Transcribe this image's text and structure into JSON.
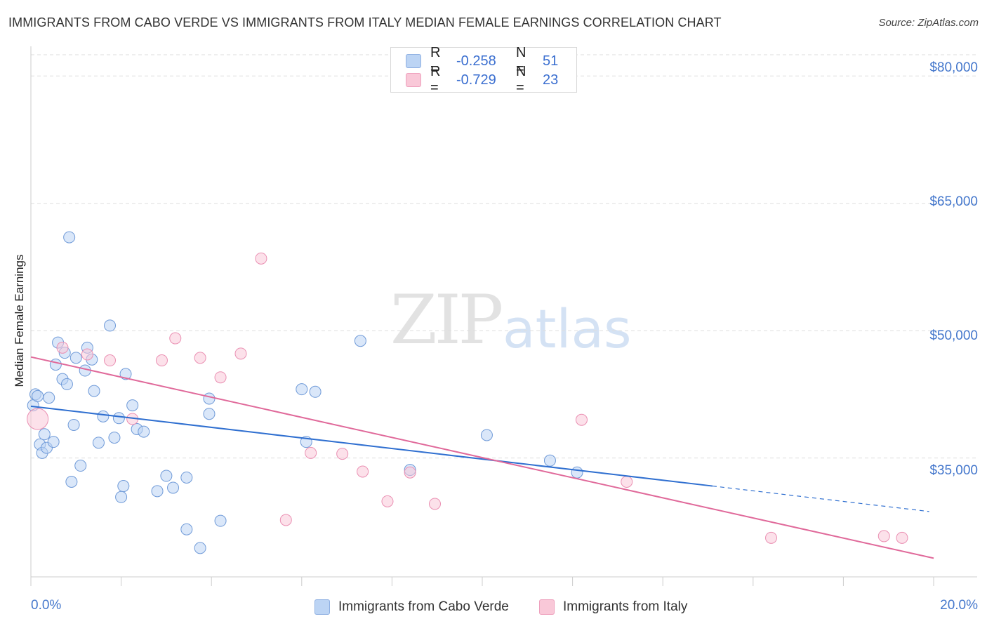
{
  "title": "IMMIGRANTS FROM CABO VERDE VS IMMIGRANTS FROM ITALY MEDIAN FEMALE EARNINGS CORRELATION CHART",
  "source": "Source: ZipAtlas.com",
  "watermark": {
    "zip": "ZIP",
    "atlas": "atlas"
  },
  "colors": {
    "blue": "#4b7fd6",
    "blue_fill": "#bcd4f4",
    "blue_line": "#2f6fd0",
    "pink": "#e46aa0",
    "pink_fill": "#f9c8d8",
    "pink_line": "#e0699a",
    "tick_text": "#4477cc",
    "grid": "#dddddd"
  },
  "legend_top": [
    {
      "r_label": "R =",
      "r_value": "-0.258",
      "n_label": "N =",
      "n_value": "51"
    },
    {
      "r_label": "R =",
      "r_value": "-0.729",
      "n_label": "N =",
      "n_value": "23"
    }
  ],
  "legend_bottom": [
    "Immigrants from Cabo Verde",
    "Immigrants from Italy"
  ],
  "chart_data": {
    "type": "scatter",
    "title": "IMMIGRANTS FROM CABO VERDE VS IMMIGRANTS FROM ITALY MEDIAN FEMALE EARNINGS CORRELATION CHART",
    "xlabel": "",
    "ylabel": "Median Female Earnings",
    "xlim": [
      0,
      20
    ],
    "ylim": [
      21000,
      82500
    ],
    "x_tick_labels": [
      "0.0%",
      "20.0%"
    ],
    "y_ticks": [
      35000,
      50000,
      65000,
      80000
    ],
    "y_tick_labels": [
      "$35,000",
      "$50,000",
      "$65,000",
      "$80,000"
    ],
    "grid": true,
    "series": [
      {
        "name": "Immigrants from Cabo Verde",
        "R": -0.258,
        "N": 51,
        "points": [
          [
            0.05,
            41.2
          ],
          [
            0.1,
            42.5
          ],
          [
            0.15,
            42.3
          ],
          [
            0.2,
            36.6
          ],
          [
            0.25,
            35.6
          ],
          [
            0.3,
            37.8
          ],
          [
            0.35,
            36.2
          ],
          [
            0.4,
            42.1
          ],
          [
            0.5,
            36.9
          ],
          [
            0.55,
            46.0
          ],
          [
            0.6,
            48.6
          ],
          [
            0.7,
            44.3
          ],
          [
            0.75,
            47.4
          ],
          [
            0.8,
            43.7
          ],
          [
            0.85,
            61.0
          ],
          [
            0.9,
            32.2
          ],
          [
            0.95,
            38.9
          ],
          [
            1.0,
            46.8
          ],
          [
            1.1,
            34.1
          ],
          [
            1.2,
            45.3
          ],
          [
            1.25,
            48.0
          ],
          [
            1.35,
            46.6
          ],
          [
            1.4,
            42.9
          ],
          [
            1.5,
            36.8
          ],
          [
            1.6,
            39.9
          ],
          [
            1.75,
            50.6
          ],
          [
            1.85,
            37.4
          ],
          [
            1.95,
            39.7
          ],
          [
            2.0,
            30.4
          ],
          [
            2.05,
            31.7
          ],
          [
            2.1,
            44.9
          ],
          [
            2.25,
            41.2
          ],
          [
            2.35,
            38.4
          ],
          [
            2.5,
            38.1
          ],
          [
            2.8,
            31.1
          ],
          [
            3.0,
            32.9
          ],
          [
            3.15,
            31.5
          ],
          [
            3.45,
            32.7
          ],
          [
            3.45,
            26.6
          ],
          [
            3.75,
            24.4
          ],
          [
            3.95,
            40.2
          ],
          [
            3.95,
            42.0
          ],
          [
            4.2,
            27.6
          ],
          [
            6.0,
            43.1
          ],
          [
            6.1,
            36.9
          ],
          [
            6.3,
            42.8
          ],
          [
            7.3,
            48.8
          ],
          [
            8.4,
            33.6
          ],
          [
            10.1,
            37.7
          ],
          [
            11.5,
            34.7
          ],
          [
            12.1,
            33.3
          ]
        ],
        "trend": {
          "x": [
            0,
            15.1
          ],
          "y": [
            41.1,
            31.7
          ]
        },
        "trend_dashed": {
          "x": [
            15.1,
            19.9
          ],
          "y": [
            31.7,
            28.7
          ]
        }
      },
      {
        "name": "Immigrants from Italy",
        "R": -0.729,
        "N": 23,
        "points": [
          [
            0.15,
            39.6
          ],
          [
            0.7,
            48.0
          ],
          [
            1.25,
            47.2
          ],
          [
            1.75,
            46.5
          ],
          [
            2.25,
            39.6
          ],
          [
            2.9,
            46.5
          ],
          [
            3.2,
            49.1
          ],
          [
            3.75,
            46.8
          ],
          [
            4.2,
            44.5
          ],
          [
            4.65,
            47.3
          ],
          [
            5.1,
            58.5
          ],
          [
            5.65,
            27.7
          ],
          [
            6.2,
            35.6
          ],
          [
            6.9,
            35.5
          ],
          [
            7.35,
            33.4
          ],
          [
            7.9,
            29.9
          ],
          [
            8.4,
            33.3
          ],
          [
            8.95,
            29.6
          ],
          [
            12.2,
            39.5
          ],
          [
            13.2,
            32.2
          ],
          [
            16.4,
            25.6
          ],
          [
            18.9,
            25.8
          ],
          [
            19.3,
            25.6
          ]
        ],
        "trend": {
          "x": [
            0,
            20
          ],
          "y": [
            46.9,
            23.2
          ]
        }
      }
    ]
  }
}
